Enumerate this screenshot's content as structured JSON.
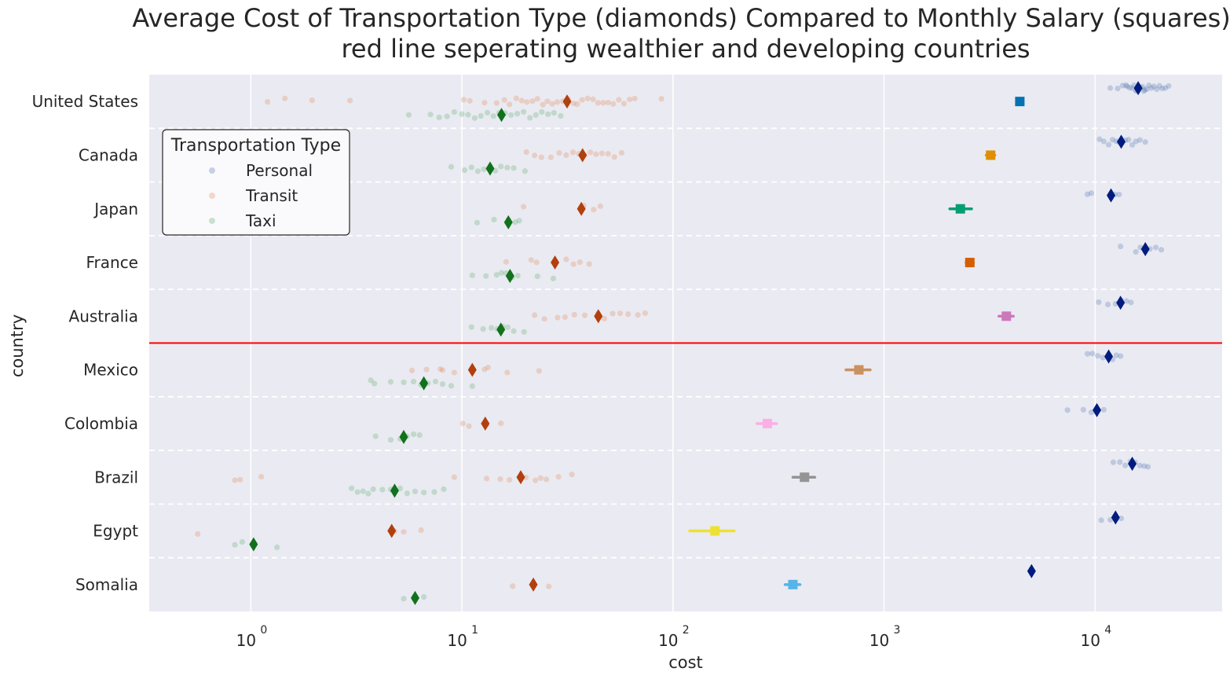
{
  "chart_data": {
    "type": "scatter",
    "title_line1": "Average Cost of Transportation Type (diamonds) Compared to Monthly Salary (squares):",
    "title_line2": "red line seperating wealthier and developing countries",
    "xlabel": "cost",
    "ylabel": "country",
    "xscale": "log",
    "xlim": [
      0.33,
      40000
    ],
    "x_ticks": [
      {
        "value": 1,
        "base": "10",
        "exp": "0"
      },
      {
        "value": 10,
        "base": "10",
        "exp": "1"
      },
      {
        "value": 100,
        "base": "10",
        "exp": "2"
      },
      {
        "value": 1000,
        "base": "10",
        "exp": "3"
      },
      {
        "value": 10000,
        "base": "10",
        "exp": "4"
      }
    ],
    "countries": [
      "United States",
      "Canada",
      "Japan",
      "France",
      "Australia",
      "Mexico",
      "Colombia",
      "Brazil",
      "Egypt",
      "Somalia"
    ],
    "separator_after_index": 4,
    "colors": {
      "background": "#eaeaf2",
      "grid": "#ffffff",
      "separator": "#ff0000",
      "Personal": "#4c72b0",
      "Transit": "#dd8452",
      "Taxi": "#55a868",
      "Personal_mean": "#001c7f",
      "Transit_mean": "#b1400d",
      "Taxi_mean": "#12711c"
    },
    "legend": {
      "title": "Transportation Type",
      "placement": "upper-left",
      "entries": [
        "Personal",
        "Transit",
        "Taxi"
      ]
    },
    "series": [
      {
        "name": "Personal",
        "offset": -0.25,
        "points": {
          "United States": [
            11800,
            12800,
            13500,
            14200,
            14600,
            15000,
            15300,
            15600,
            16000,
            16400,
            16800,
            17200,
            17600,
            18000,
            18500,
            19000,
            19600,
            20200,
            20800,
            21500,
            22300,
            14000,
            15800,
            17000
          ],
          "Canada": [
            10500,
            11000,
            11600,
            12100,
            12600,
            13000,
            13400,
            13900,
            14400,
            15000,
            15600,
            16300,
            17300
          ],
          "Japan": [
            9200,
            9600,
            11900,
            12400,
            13000
          ],
          "France": [
            13200,
            15600,
            16400,
            17300,
            18200,
            19400,
            20600
          ],
          "Australia": [
            10400,
            11500,
            12500,
            13300,
            14100,
            14800
          ],
          "Mexico": [
            9200,
            9700,
            10300,
            10900,
            11500,
            12100,
            12600,
            13200
          ],
          "Colombia": [
            7400,
            8800,
            9600,
            10200,
            11000
          ],
          "Brazil": [
            12200,
            13100,
            13900,
            14700,
            15500,
            16300,
            17100,
            17800
          ],
          "Egypt": [
            10700,
            11800,
            12600,
            13300
          ],
          "Somalia": []
        },
        "means": {
          "United States": 16000,
          "Canada": 13300,
          "Japan": 11900,
          "France": 17300,
          "Australia": 13200,
          "Mexico": 11600,
          "Colombia": 10200,
          "Brazil": 15000,
          "Egypt": 12500,
          "Somalia": 5000
        }
      },
      {
        "name": "Transit",
        "offset": 0,
        "points": {
          "United States": [
            1.2,
            1.45,
            1.95,
            2.95,
            10.2,
            10.9,
            12.8,
            14.6,
            15.9,
            16.8,
            18.1,
            19.2,
            20.3,
            21.6,
            22.8,
            24.2,
            25.4,
            26.8,
            28.3,
            30.1,
            31.9,
            33.8,
            35.2,
            37.1,
            39.4,
            41.8,
            44.1,
            46.7,
            49.3,
            52.1,
            55.4,
            58.6,
            62.3,
            65.9,
            88.2
          ],
          "Canada": [
            20.2,
            22.1,
            23.8,
            26.4,
            28.9,
            31.2,
            33.6,
            35.8,
            38.1,
            40.6,
            43.2,
            46.1,
            49.3,
            52.8,
            57.1
          ],
          "Japan": [
            19.6,
            37.8,
            42.1,
            45.3
          ],
          "France": [
            16.2,
            21.3,
            22.6,
            27.3,
            31.2,
            33.8,
            36.2,
            40.1
          ],
          "Australia": [
            22.1,
            24.6,
            28.4,
            30.8,
            34.1,
            38.2,
            44.2,
            47.3,
            51.8,
            56.2,
            61.3,
            68.2,
            73.8
          ],
          "Mexico": [
            5.8,
            6.8,
            7.9,
            8.1,
            9.2,
            11.1,
            12.8,
            13.3,
            16.4,
            23.2
          ],
          "Colombia": [
            10.1,
            10.8,
            13.1,
            15.3
          ],
          "Brazil": [
            0.84,
            0.89,
            1.12,
            9.2,
            13.1,
            15.2,
            16.8,
            20.1,
            22.3,
            23.6,
            25.1,
            28.7,
            33.2
          ],
          "Egypt": [
            0.56,
            4.8,
            5.3,
            6.4
          ],
          "Somalia": [
            17.4,
            25.8
          ]
        },
        "means": {
          "United States": 31.5,
          "Canada": 37.3,
          "Japan": 36.8,
          "France": 27.6,
          "Australia": 44.3,
          "Mexico": 11.2,
          "Colombia": 12.9,
          "Brazil": 19.0,
          "Egypt": 4.65,
          "Somalia": 21.8
        }
      },
      {
        "name": "Taxi",
        "offset": 0.25,
        "points": {
          "United States": [
            5.6,
            7.1,
            7.8,
            8.5,
            9.2,
            10.0,
            10.7,
            11.5,
            12.3,
            13.2,
            14.1,
            15.0,
            16.0,
            17.1,
            18.3,
            19.6,
            21.0,
            22.4,
            23.9,
            25.6,
            27.3,
            29.4
          ],
          "Canada": [
            8.9,
            10.3,
            11.1,
            11.9,
            12.7,
            13.6,
            14.4,
            15.3,
            16.4,
            17.6,
            19.9
          ],
          "Japan": [
            11.8,
            14.2,
            16.6,
            17.9,
            18.7
          ],
          "France": [
            11.2,
            13.0,
            14.6,
            15.4,
            16.2,
            17.3,
            18.4,
            22.8,
            27.1
          ],
          "Australia": [
            11.1,
            12.6,
            13.8,
            14.7,
            15.6,
            16.5,
            17.6,
            19.7
          ],
          "Mexico": [
            3.7,
            3.85,
            4.6,
            5.3,
            5.9,
            6.4,
            6.9,
            7.5,
            8.1,
            8.9,
            11.2
          ],
          "Colombia": [
            3.9,
            4.6,
            5.1,
            5.5,
            5.9,
            6.3
          ],
          "Brazil": [
            3.0,
            3.2,
            3.4,
            3.6,
            3.8,
            4.2,
            4.6,
            5.1,
            5.5,
            6.0,
            6.6,
            7.4,
            8.2
          ],
          "Egypt": [
            0.84,
            0.91,
            1.02,
            1.33
          ],
          "Somalia": [
            5.3,
            6.6
          ]
        },
        "means": {
          "United States": 15.4,
          "Canada": 13.6,
          "Japan": 16.6,
          "France": 16.9,
          "Australia": 15.3,
          "Mexico": 6.6,
          "Colombia": 5.3,
          "Brazil": 4.8,
          "Egypt": 1.03,
          "Somalia": 6.0
        }
      }
    ],
    "salary": {
      "marker": "square",
      "values": {
        "United States": 4400,
        "Canada": 3200,
        "Japan": 2300,
        "France": 2550,
        "Australia": 3800,
        "Mexico": 760,
        "Colombia": 280,
        "Brazil": 420,
        "Egypt": 158,
        "Somalia": 370
      },
      "error_low": {
        "United States": 4300,
        "Canada": 3050,
        "Japan": 2050,
        "France": 2450,
        "Australia": 3500,
        "Mexico": 660,
        "Colombia": 250,
        "Brazil": 370,
        "Egypt": 120,
        "Somalia": 340
      },
      "error_high": {
        "United States": 4550,
        "Canada": 3350,
        "Japan": 2600,
        "France": 2650,
        "Australia": 4100,
        "Mexico": 860,
        "Colombia": 310,
        "Brazil": 470,
        "Egypt": 195,
        "Somalia": 400
      },
      "colors": {
        "United States": "#0173b2",
        "Canada": "#de8f05",
        "Japan": "#029e73",
        "France": "#d55e00",
        "Australia": "#cc78bc",
        "Mexico": "#ca9161",
        "Colombia": "#fbafe4",
        "Brazil": "#949494",
        "Egypt": "#ece133",
        "Somalia": "#56b4e9"
      }
    }
  }
}
